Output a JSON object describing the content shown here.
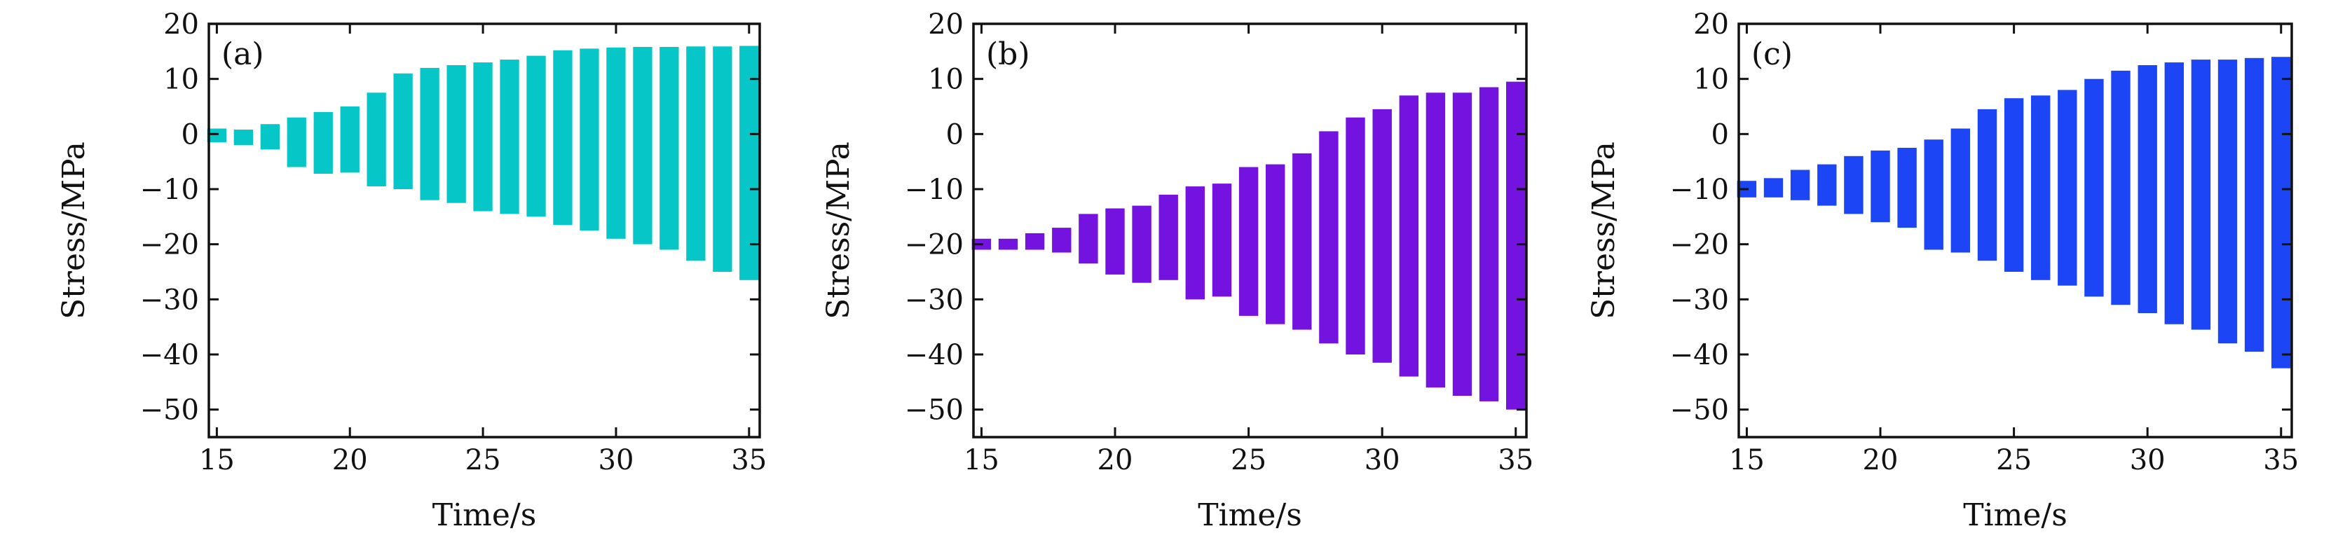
{
  "chart_data": [
    {
      "type": "bar",
      "panel_label": "(a)",
      "color": "#06C6C8",
      "xlabel": "Time/s",
      "ylabel": "Stress/MPa",
      "xlim": [
        14.7,
        35.4
      ],
      "ylim": [
        -55,
        20
      ],
      "xticks": [
        15,
        20,
        25,
        30,
        35
      ],
      "yticks": [
        20,
        10,
        0,
        -10,
        -20,
        -30,
        -40,
        -50
      ],
      "grid": false,
      "x": [
        15,
        16,
        17,
        18,
        19,
        20,
        21,
        22,
        23,
        24,
        25,
        26,
        27,
        28,
        29,
        30,
        31,
        32,
        33,
        34,
        35
      ],
      "high": [
        1,
        0.8,
        1.8,
        3,
        4,
        5,
        7.5,
        11,
        12,
        12.5,
        13,
        13.5,
        14.2,
        15.2,
        15.5,
        15.7,
        15.8,
        15.8,
        15.9,
        15.9,
        16
      ],
      "low": [
        -1.5,
        -2,
        -2.8,
        -6,
        -7.2,
        -7,
        -9.5,
        -10,
        -12,
        -12.5,
        -14,
        -14.5,
        -15,
        -16.5,
        -17.5,
        -19,
        -20,
        -21,
        -23,
        -25,
        -26.5
      ]
    },
    {
      "type": "bar",
      "panel_label": "(b)",
      "color": "#7412E0",
      "xlabel": "Time/s",
      "ylabel": "Stress/MPa",
      "xlim": [
        14.7,
        35.4
      ],
      "ylim": [
        -55,
        20
      ],
      "xticks": [
        15,
        20,
        25,
        30,
        35
      ],
      "yticks": [
        20,
        10,
        0,
        -10,
        -20,
        -30,
        -40,
        -50
      ],
      "grid": false,
      "x": [
        15,
        16,
        17,
        18,
        19,
        20,
        21,
        22,
        23,
        24,
        25,
        26,
        27,
        28,
        29,
        30,
        31,
        32,
        33,
        34,
        35
      ],
      "high": [
        -19,
        -19,
        -18,
        -17,
        -14.5,
        -13.5,
        -13,
        -11,
        -9.5,
        -9,
        -6,
        -5.5,
        -3.5,
        0.5,
        3,
        4.5,
        7,
        7.5,
        7.5,
        8.5,
        9.5
      ],
      "low": [
        -21,
        -21,
        -21,
        -21.5,
        -23.5,
        -25.5,
        -27,
        -26.5,
        -30,
        -29.5,
        -33,
        -34.5,
        -35.5,
        -38,
        -40,
        -41.5,
        -44,
        -46,
        -47.5,
        -48.5,
        -50
      ]
    },
    {
      "type": "bar",
      "panel_label": "(c)",
      "color": "#1C45F5",
      "xlabel": "Time/s",
      "ylabel": "Stress/MPa",
      "xlim": [
        14.7,
        35.4
      ],
      "ylim": [
        -55,
        20
      ],
      "xticks": [
        15,
        20,
        25,
        30,
        35
      ],
      "yticks": [
        20,
        10,
        0,
        -10,
        -20,
        -30,
        -40,
        -50
      ],
      "grid": false,
      "x": [
        15,
        16,
        17,
        18,
        19,
        20,
        21,
        22,
        23,
        24,
        25,
        26,
        27,
        28,
        29,
        30,
        31,
        32,
        33,
        34,
        35
      ],
      "high": [
        -8.5,
        -8,
        -6.5,
        -5.5,
        -4,
        -3,
        -2.5,
        -1,
        1,
        4.5,
        6.5,
        7,
        8,
        10,
        11.5,
        12.5,
        13,
        13.5,
        13.5,
        13.8,
        14
      ],
      "low": [
        -11.5,
        -11.5,
        -12,
        -13,
        -14.5,
        -16,
        -17,
        -21,
        -21.5,
        -23,
        -25,
        -26.5,
        -27.5,
        -29.5,
        -31,
        -32.5,
        -34.5,
        -35.5,
        -38,
        -39.5,
        -42.5
      ]
    }
  ]
}
